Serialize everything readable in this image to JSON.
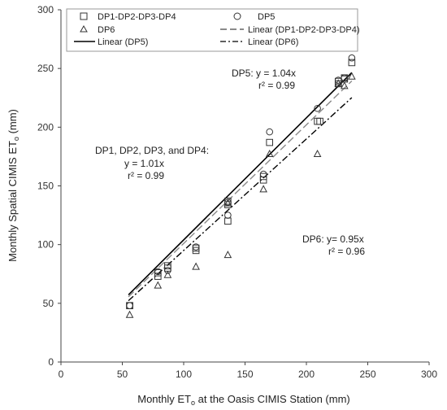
{
  "chart_data": {
    "type": "scatter",
    "title": "",
    "xlabel": {
      "main": "Monthly ET",
      "sub": "o",
      "rest": " at the Oasis CIMIS Station (mm)"
    },
    "ylabel": {
      "main": "Monthly Spatial CIMIS ET",
      "sub": "o",
      "rest": " (mm)"
    },
    "xlim": [
      0,
      300
    ],
    "ylim": [
      0,
      300
    ],
    "xticks": [
      "0",
      "50",
      "100",
      "150",
      "200",
      "250",
      "300"
    ],
    "yticks": [
      "0",
      "50",
      "100",
      "150",
      "200",
      "250",
      "300"
    ],
    "grid": false,
    "legend_position": "top",
    "legend": {
      "dp1_4": "DP1-DP2-DP3-DP4",
      "dp5": "DP5",
      "dp6": "DP6",
      "lin_dp1_4": "Linear (DP1-DP2-DP3-DP4)",
      "lin_dp5": "Linear (DP5)",
      "lin_dp6": "Linear (DP6)"
    },
    "series": [
      {
        "name": "DP1-DP2-DP3-DP4",
        "marker": "square",
        "points": [
          [
            56,
            48
          ],
          [
            56,
            48
          ],
          [
            79,
            73
          ],
          [
            79,
            76
          ],
          [
            87,
            82
          ],
          [
            87,
            80
          ],
          [
            110,
            95
          ],
          [
            110,
            97
          ],
          [
            136,
            120
          ],
          [
            136,
            134
          ],
          [
            136,
            137
          ],
          [
            165,
            155
          ],
          [
            165,
            158
          ],
          [
            170,
            187
          ],
          [
            209,
            205
          ],
          [
            211,
            205
          ],
          [
            226,
            237
          ],
          [
            226,
            239
          ],
          [
            231,
            241
          ],
          [
            231,
            242
          ],
          [
            237,
            255
          ]
        ]
      },
      {
        "name": "DP5",
        "marker": "circle",
        "points": [
          [
            56,
            48
          ],
          [
            79,
            77
          ],
          [
            87,
            78
          ],
          [
            110,
            98
          ],
          [
            136,
            125
          ],
          [
            136,
            136
          ],
          [
            165,
            160
          ],
          [
            170,
            196
          ],
          [
            209,
            216
          ],
          [
            226,
            240
          ],
          [
            231,
            242
          ],
          [
            237,
            259
          ]
        ]
      },
      {
        "name": "DP6",
        "marker": "triangle",
        "points": [
          [
            56,
            40
          ],
          [
            79,
            65
          ],
          [
            87,
            74
          ],
          [
            110,
            81
          ],
          [
            136,
            91
          ],
          [
            136,
            135
          ],
          [
            165,
            147
          ],
          [
            170,
            177
          ],
          [
            209,
            177
          ],
          [
            226,
            237
          ],
          [
            231,
            235
          ],
          [
            237,
            243
          ]
        ]
      }
    ],
    "trendlines": [
      {
        "name": "Linear (DP1-DP2-DP3-DP4)",
        "slope": 1.01,
        "x_range": [
          55,
          237
        ],
        "style": "dash",
        "color": "#8a8a8a"
      },
      {
        "name": "Linear (DP5)",
        "slope": 1.04,
        "x_range": [
          55,
          237
        ],
        "style": "solid",
        "color": "#000000"
      },
      {
        "name": "Linear (DP6)",
        "slope": 0.95,
        "x_range": [
          55,
          237
        ],
        "style": "dashdot",
        "color": "#000000"
      }
    ],
    "annotations": {
      "dp5": [
        "DP5:  y = 1.04x",
        "r² = 0.99"
      ],
      "dp1_4": [
        "DP1, DP2, DP3, and DP4:",
        "y = 1.01x",
        "r² = 0.99"
      ],
      "dp6": [
        "DP6:  y= 0.95x",
        "r² = 0.96"
      ]
    }
  }
}
